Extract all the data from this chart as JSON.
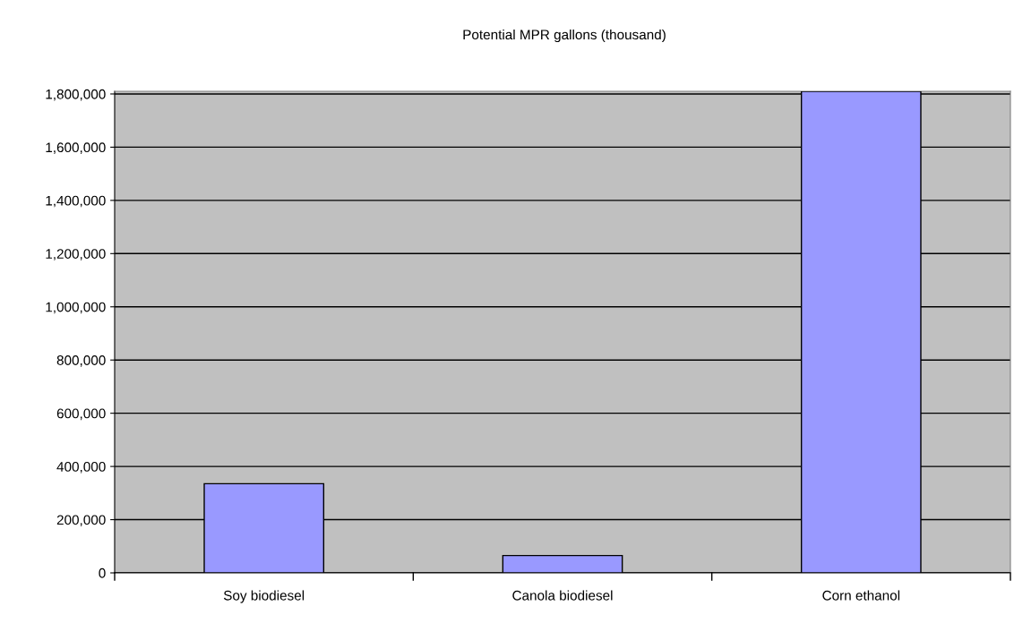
{
  "chart_data": {
    "type": "bar",
    "title": "Potential MPR gallons (thousand)",
    "categories": [
      "Soy biodiesel",
      "Canola biodiesel",
      "Corn ethanol"
    ],
    "values": [
      335000,
      65000,
      1810000
    ],
    "color": "#9999ff",
    "ylim": [
      0,
      1810000
    ],
    "yticks": [
      {
        "value": 0,
        "label": "0"
      },
      {
        "value": 200000,
        "label": "200,000"
      },
      {
        "value": 400000,
        "label": "400,000"
      },
      {
        "value": 600000,
        "label": "600,000"
      },
      {
        "value": 800000,
        "label": "800,000"
      },
      {
        "value": 1000000,
        "label": "1,000,000"
      },
      {
        "value": 1200000,
        "label": "1,200,000"
      },
      {
        "value": 1400000,
        "label": "1,400,000"
      },
      {
        "value": 1600000,
        "label": "1,600,000"
      },
      {
        "value": 1800000,
        "label": "1,800,000"
      }
    ],
    "grid": "y",
    "legend": false
  }
}
